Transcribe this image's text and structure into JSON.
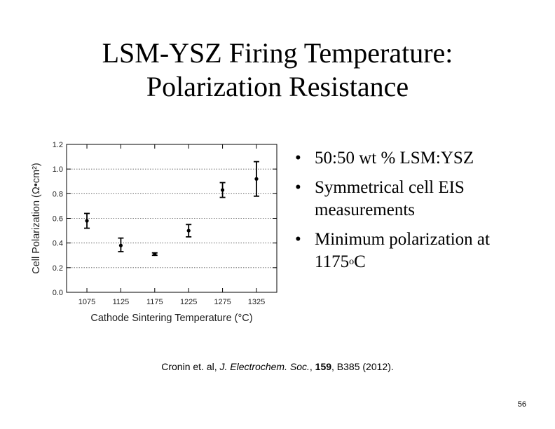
{
  "slide": {
    "title_line1": "LSM-YSZ Firing Temperature:",
    "title_line2": "Polarization Resistance",
    "bullets": [
      {
        "text": "50:50 wt % LSM:YSZ"
      },
      {
        "text": "Symmetrical cell EIS measurements"
      },
      {
        "text_main": "Minimum polarization at 1175",
        "text_super": "o",
        "text_tail": "C"
      }
    ],
    "bullet_char": "•",
    "citation": {
      "authors": "Cronin et. al, ",
      "journal": "J. Electrochem. Soc.",
      "sep1": ", ",
      "volume": "159",
      "rest": ", B385 (2012)."
    },
    "page_number": "56"
  },
  "chart_data": {
    "type": "scatter",
    "xlabel": "Cathode Sintering Temperature (°C)",
    "ylabel": "Cell Polarization (Ω•cm²)",
    "x": [
      1075,
      1125,
      1175,
      1225,
      1275,
      1325
    ],
    "y": [
      0.58,
      0.38,
      0.31,
      0.5,
      0.83,
      0.92
    ],
    "err_low": [
      0.52,
      0.33,
      0.3,
      0.45,
      0.77,
      0.78
    ],
    "err_high": [
      0.64,
      0.44,
      0.32,
      0.55,
      0.89,
      1.06
    ],
    "x_ticks": [
      "1075",
      "1125",
      "1175",
      "1225",
      "1275",
      "1325"
    ],
    "y_ticks": [
      "0.0",
      "0.2",
      "0.4",
      "0.6",
      "0.8",
      "1.0",
      "1.2"
    ],
    "xlim": [
      1045,
      1355
    ],
    "ylim": [
      0,
      1.2
    ],
    "grid": "horizontal dotted"
  }
}
